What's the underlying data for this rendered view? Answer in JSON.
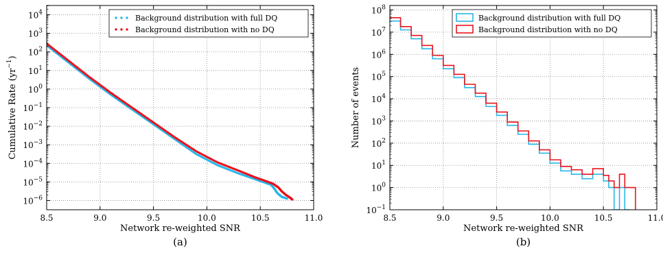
{
  "chart_data": [
    {
      "panel_label": "(a)",
      "type": "scatter",
      "xlabel": "Network re-weighted SNR",
      "ylabel_prefix": "Cumulative Rate (yr",
      "ylabel_exp": "−1",
      "ylabel_suffix": ")",
      "xlim": [
        8.5,
        11.0
      ],
      "ylim_log10": [
        -6.5,
        4.5
      ],
      "yscale": "log",
      "grid": true,
      "legend_position": "top-right",
      "x_ticks": [
        "8.5",
        "9.0",
        "9.5",
        "10.0",
        "10.5",
        "11.0"
      ],
      "y_tick_exponents": [
        "-6",
        "-5",
        "-4",
        "-3",
        "-2",
        "-1",
        "0",
        "1",
        "2",
        "3",
        "4"
      ],
      "series": [
        {
          "name": "Background distribution with full DQ",
          "color": "#29b6e8",
          "x": [
            8.5,
            8.7,
            8.9,
            9.1,
            9.3,
            9.5,
            9.7,
            9.9,
            10.1,
            10.3,
            10.45,
            10.55,
            10.6,
            10.63,
            10.66,
            10.7,
            10.75
          ],
          "y_log10": [
            2.35,
            1.45,
            0.55,
            -0.3,
            -1.1,
            -1.9,
            -2.7,
            -3.5,
            -4.1,
            -4.55,
            -4.85,
            -5.05,
            -5.15,
            -5.35,
            -5.6,
            -5.8,
            -5.9
          ]
        },
        {
          "name": "Background distribution with no DQ",
          "color": "#e8141e",
          "x": [
            8.5,
            8.7,
            8.9,
            9.1,
            9.3,
            9.5,
            9.7,
            9.9,
            10.1,
            10.3,
            10.45,
            10.55,
            10.62,
            10.67,
            10.7,
            10.74,
            10.78,
            10.8
          ],
          "y_log10": [
            2.45,
            1.55,
            0.65,
            -0.2,
            -1.0,
            -1.8,
            -2.6,
            -3.35,
            -3.95,
            -4.4,
            -4.75,
            -4.95,
            -5.1,
            -5.3,
            -5.5,
            -5.7,
            -5.85,
            -5.95
          ]
        }
      ]
    },
    {
      "panel_label": "(b)",
      "type": "step",
      "xlabel": "Network re-weighted SNR",
      "ylabel": "Number of events",
      "xlim": [
        8.5,
        11.0
      ],
      "ylim_log10": [
        -1,
        8.2
      ],
      "yscale": "log",
      "grid": true,
      "legend_position": "top-right",
      "x_ticks": [
        "8.5",
        "9.0",
        "9.5",
        "10.0",
        "10.5",
        "11.0"
      ],
      "y_tick_exponents": [
        "-1",
        "0",
        "1",
        "2",
        "3",
        "4",
        "5",
        "6",
        "7",
        "8"
      ],
      "series": [
        {
          "name": "Background distribution with full DQ",
          "color": "#29b6e8",
          "x": [
            8.5,
            8.6,
            8.7,
            8.8,
            8.9,
            9.0,
            9.1,
            9.2,
            9.3,
            9.4,
            9.5,
            9.6,
            9.7,
            9.8,
            9.9,
            10.0,
            10.1,
            10.2,
            10.3,
            10.4,
            10.5,
            10.55,
            10.6,
            10.65,
            10.7
          ],
          "y_log10": [
            7.5,
            7.1,
            6.7,
            6.25,
            5.8,
            5.35,
            4.95,
            4.5,
            4.1,
            3.65,
            3.25,
            2.8,
            2.4,
            1.95,
            1.55,
            1.1,
            0.75,
            0.6,
            0.4,
            0.6,
            0.3,
            0.0,
            -1.0,
            0.0,
            -1.0
          ]
        },
        {
          "name": "Background distribution with no DQ",
          "color": "#e8141e",
          "x": [
            8.5,
            8.6,
            8.7,
            8.8,
            8.9,
            9.0,
            9.1,
            9.2,
            9.3,
            9.4,
            9.5,
            9.6,
            9.7,
            9.8,
            9.9,
            10.0,
            10.1,
            10.2,
            10.3,
            10.4,
            10.5,
            10.55,
            10.6,
            10.65,
            10.7,
            10.75
          ],
          "y_log10": [
            7.65,
            7.25,
            6.85,
            6.4,
            5.95,
            5.5,
            5.1,
            4.65,
            4.25,
            3.8,
            3.4,
            2.95,
            2.55,
            2.1,
            1.7,
            1.25,
            0.95,
            0.8,
            0.6,
            0.85,
            0.55,
            0.3,
            0.0,
            0.6,
            0.0,
            0.0
          ]
        }
      ]
    }
  ]
}
